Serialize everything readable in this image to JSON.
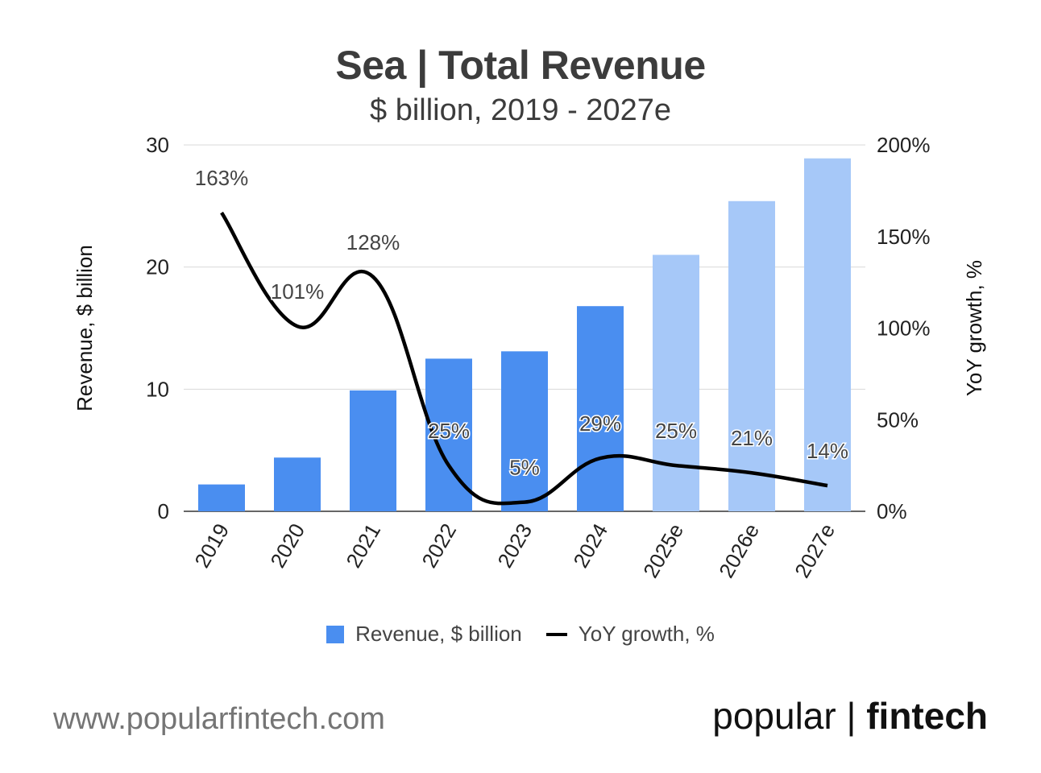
{
  "chart_data": {
    "type": "bar",
    "title": "Sea | Total Revenue",
    "subtitle": "$ billion, 2019 - 2027e",
    "categories": [
      "2019",
      "2020",
      "2021",
      "2022",
      "2023",
      "2024",
      "2025e",
      "2026e",
      "2027e"
    ],
    "series": [
      {
        "name": "Revenue, $ billion",
        "type": "bar",
        "axis": "left",
        "values": [
          2.2,
          4.4,
          9.9,
          12.5,
          13.1,
          16.8,
          21.0,
          25.4,
          28.9
        ],
        "color": "#4a8ef0",
        "estimate_color": "#a6c8f8"
      },
      {
        "name": "YoY growth, %",
        "type": "line",
        "axis": "right",
        "values": [
          163,
          101,
          128,
          25,
          5,
          29,
          25,
          21,
          14
        ],
        "labels": [
          "163%",
          "101%",
          "128%",
          "25%",
          "5%",
          "29%",
          "25%",
          "21%",
          "14%"
        ],
        "color": "#000000"
      }
    ],
    "estimate_from_index": 6,
    "ylabel": "Revenue, $ billion",
    "y2label": "YoY growth, %",
    "ylim": [
      0,
      30
    ],
    "yticks": [
      "0",
      "10",
      "20",
      "30"
    ],
    "y2lim": [
      0,
      200
    ],
    "y2ticks": [
      "0%",
      "50%",
      "100%",
      "150%",
      "200%"
    ],
    "grid": true,
    "legend": "bottom-center"
  },
  "legend": {
    "bar_label": "Revenue, $ billion",
    "line_label": "YoY growth, %"
  },
  "footer": {
    "url": "www.popularfintech.com",
    "brand_prefix": "popular | ",
    "brand_bold": "fintech"
  }
}
